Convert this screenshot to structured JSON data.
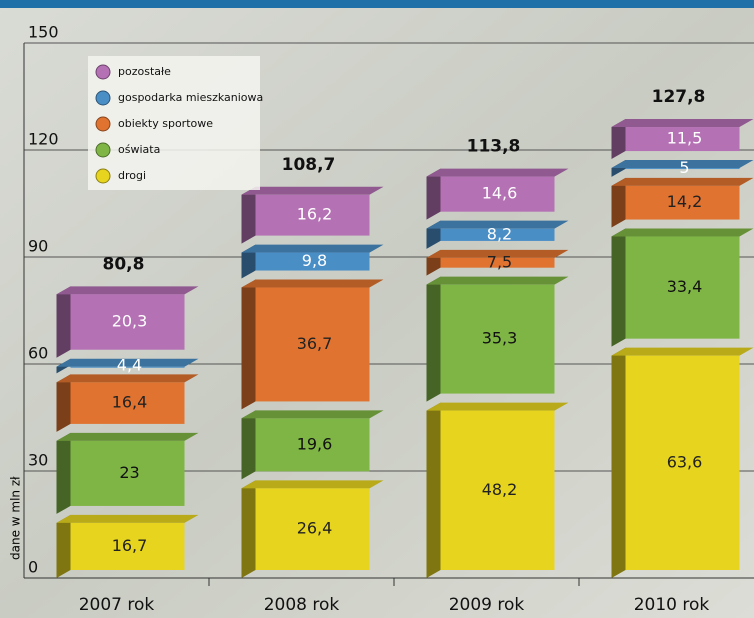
{
  "chart_data": {
    "type": "bar3d-stacked",
    "y_label": "dane w mln zł",
    "categories": [
      "2007 rok",
      "2008 rok",
      "2009 rok",
      "2010 rok"
    ],
    "series": [
      {
        "name": "drogi",
        "color": "#e6d41e",
        "values": [
          16.7,
          26.4,
          48.2,
          63.6
        ],
        "value_labels": [
          "16,7",
          "26,4",
          "48,2",
          "63,6"
        ]
      },
      {
        "name": "oświata",
        "color": "#7fb545",
        "values": [
          23,
          19.6,
          35.3,
          33.4
        ],
        "value_labels": [
          "23",
          "19,6",
          "35,3",
          "33,4"
        ]
      },
      {
        "name": "obiekty sportowe",
        "color": "#e0732f",
        "values": [
          16.4,
          36.7,
          7.5,
          14.2
        ],
        "value_labels": [
          "16,4",
          "36,7",
          "7,5",
          "14,2"
        ]
      },
      {
        "name": "gospodarka mieszkaniowa",
        "color": "#4a8ec6",
        "values": [
          4.4,
          9.8,
          8.2,
          5
        ],
        "value_labels": [
          "4,4",
          "9,8",
          "8,2",
          "5"
        ]
      },
      {
        "name": "pozostałe",
        "color": "#b471b4",
        "values": [
          20.3,
          16.2,
          14.6,
          11.5
        ],
        "value_labels": [
          "20,3",
          "16,2",
          "14,6",
          "11,5"
        ]
      }
    ],
    "totals": [
      80.8,
      108.7,
      113.8,
      127.8
    ],
    "total_labels": [
      "80,8",
      "108,7",
      "113,8",
      "127,8"
    ],
    "ylim": [
      0,
      150
    ],
    "yticks": [
      0,
      30,
      60,
      90,
      120,
      150
    ],
    "grid": true,
    "legend": "upper left"
  }
}
